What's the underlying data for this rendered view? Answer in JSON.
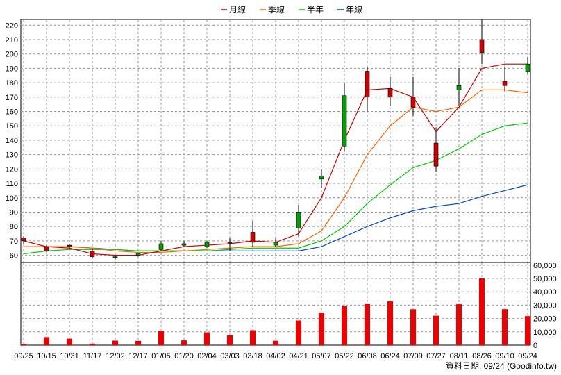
{
  "chart_data": {
    "type": "candlestick",
    "legend": [
      {
        "name": "月線",
        "color": "#cc0000"
      },
      {
        "name": "季線",
        "color": "#ff6600"
      },
      {
        "name": "半年",
        "color": "#00cc00"
      },
      {
        "name": "年線",
        "color": "#0044cc"
      }
    ],
    "x_ticks": [
      "09/25",
      "10/15",
      "10/31",
      "11/17",
      "12/02",
      "12/17",
      "01/05",
      "01/20",
      "02/04",
      "03/03",
      "03/18",
      "04/02",
      "04/21",
      "05/07",
      "05/22",
      "06/08",
      "06/24",
      "07/09",
      "07/27",
      "08/11",
      "08/26",
      "09/10",
      "09/24"
    ],
    "price_axis": {
      "ticks": [
        60,
        70,
        80,
        90,
        100,
        110,
        120,
        130,
        140,
        150,
        160,
        170,
        180,
        190,
        200,
        210,
        220
      ],
      "ylim": [
        54,
        224
      ]
    },
    "volume_axis": {
      "ticks": [
        "0",
        "10,000",
        "20,000",
        "30,000",
        "40,000",
        "50,000",
        "60,000"
      ],
      "ylim": [
        0,
        62000
      ]
    },
    "candles": [
      {
        "x": "09/25",
        "open": 72,
        "high": 73,
        "low": 68,
        "close": 70
      },
      {
        "x": "10/15",
        "open": 66,
        "high": 67,
        "low": 62,
        "close": 63
      },
      {
        "x": "10/31",
        "open": 67,
        "high": 68,
        "low": 65,
        "close": 66
      },
      {
        "x": "11/17",
        "open": 63,
        "high": 64,
        "low": 58,
        "close": 59
      },
      {
        "x": "12/02",
        "open": 59,
        "high": 60,
        "low": 57,
        "close": 59
      },
      {
        "x": "12/17",
        "open": 60,
        "high": 61,
        "low": 59,
        "close": 61
      },
      {
        "x": "01/05",
        "open": 64,
        "high": 70,
        "low": 63,
        "close": 68
      },
      {
        "x": "01/20",
        "open": 67,
        "high": 70,
        "low": 66,
        "close": 68
      },
      {
        "x": "02/04",
        "open": 66,
        "high": 70,
        "low": 65,
        "close": 69
      },
      {
        "x": "03/03",
        "open": 69,
        "high": 72,
        "low": 63,
        "close": 69
      },
      {
        "x": "03/18",
        "open": 76,
        "high": 84,
        "low": 66,
        "close": 69
      },
      {
        "x": "04/02",
        "open": 67,
        "high": 72,
        "low": 66,
        "close": 69
      },
      {
        "x": "04/21",
        "open": 79,
        "high": 95,
        "low": 73,
        "close": 90
      },
      {
        "x": "05/07",
        "open": 113,
        "high": 120,
        "low": 107,
        "close": 115
      },
      {
        "x": "05/22",
        "open": 136,
        "high": 180,
        "low": 132,
        "close": 171
      },
      {
        "x": "06/08",
        "open": 188,
        "high": 191,
        "low": 160,
        "close": 170
      },
      {
        "x": "06/24",
        "open": 176,
        "high": 184,
        "low": 164,
        "close": 170
      },
      {
        "x": "07/09",
        "open": 170,
        "high": 184,
        "low": 157,
        "close": 163
      },
      {
        "x": "07/27",
        "open": 138,
        "high": 149,
        "low": 118,
        "close": 122
      },
      {
        "x": "08/11",
        "open": 175,
        "high": 190,
        "low": 164,
        "close": 178
      },
      {
        "x": "08/26",
        "open": 210,
        "high": 224,
        "low": 193,
        "close": 201
      },
      {
        "x": "09/10",
        "open": 181,
        "high": 191,
        "low": 174,
        "close": 178
      },
      {
        "x": "09/24",
        "open": 188,
        "high": 198,
        "low": 186,
        "close": 193
      }
    ],
    "ma_month": [
      70,
      66,
      65,
      61,
      60,
      60,
      63,
      66,
      67,
      68,
      70,
      69,
      75,
      100,
      140,
      175,
      176,
      170,
      146,
      163,
      190,
      193,
      193
    ],
    "ma_quarter": [
      66,
      66,
      66,
      65,
      63,
      62,
      62,
      63,
      64,
      65,
      66,
      66,
      68,
      77,
      100,
      130,
      150,
      163,
      160,
      163,
      175,
      175,
      173
    ],
    "ma_half": [
      61,
      63,
      64,
      64,
      64,
      63,
      63,
      63,
      63,
      64,
      65,
      65,
      65,
      70,
      80,
      96,
      109,
      121,
      126,
      134,
      144,
      150,
      152
    ],
    "ma_year": [
      66,
      66,
      66,
      65,
      64,
      63,
      63,
      63,
      63,
      63,
      63,
      63,
      63,
      66,
      73,
      80,
      86,
      91,
      94,
      96,
      101,
      105,
      109
    ],
    "volume": [
      900,
      6100,
      4900,
      1100,
      3400,
      3200,
      10800,
      3600,
      9600,
      7500,
      11200,
      3300,
      18500,
      24500,
      29200,
      30800,
      32800,
      26900,
      22100,
      30700,
      50000,
      27000,
      21800
    ],
    "source_text": "資料日期: 09/24 (Goodinfo.tw)"
  }
}
